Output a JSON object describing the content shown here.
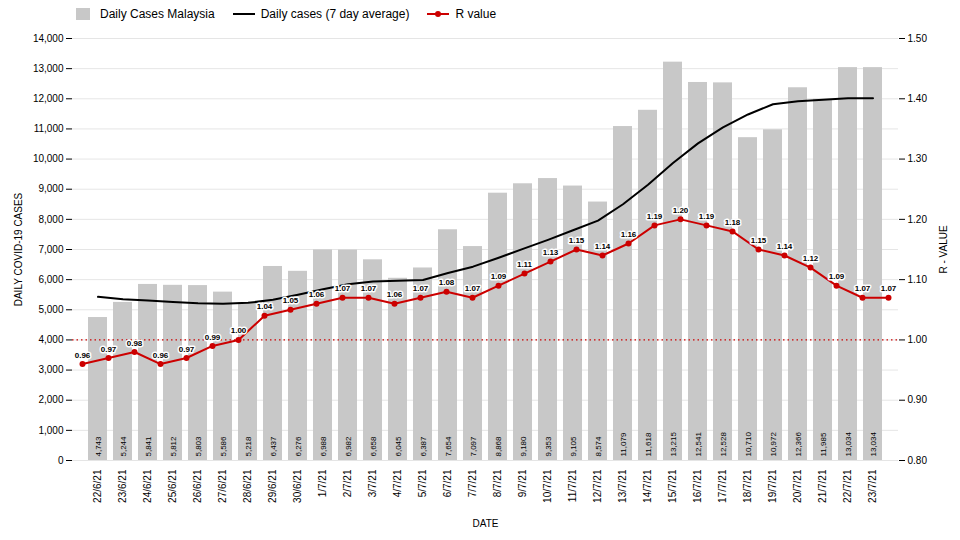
{
  "chart_data": {
    "type": "bar",
    "categories": [
      "22/6/21",
      "23/6/21",
      "24/6/21",
      "25/6/21",
      "26/6/21",
      "27/6/21",
      "28/6/21",
      "29/6/21",
      "30/6/21",
      "1/7/21",
      "2/7/21",
      "3/7/21",
      "4/7/21",
      "5/7/21",
      "6/7/21",
      "7/7/21",
      "8/7/21",
      "9/7/21",
      "10/7/21",
      "11/7/21",
      "12/7/21",
      "13/7/21",
      "14/7/21",
      "15/7/21",
      "16/7/21",
      "17/7/21",
      "18/7/21",
      "19/7/21",
      "20/7/21",
      "21/7/21",
      "22/7/21",
      "23/7/21"
    ],
    "xlabel": "DATE",
    "ylabel": "DAILY COVID-19 CASES",
    "y2label": "R - VALUE",
    "ylim": [
      0,
      14000
    ],
    "yticks": [
      0,
      {
        "value": 1000,
        "label": "1,000"
      },
      {
        "value": 2000,
        "label": "2,000"
      },
      {
        "value": 3000,
        "label": "3,000"
      },
      {
        "value": 4000,
        "label": "4,000"
      },
      {
        "value": 5000,
        "label": "5,000"
      },
      {
        "value": 6000,
        "label": "6,000"
      },
      {
        "value": 7000,
        "label": "7,000"
      },
      {
        "value": 8000,
        "label": "8,000"
      },
      {
        "value": 9000,
        "label": "9,000"
      },
      {
        "value": 10000,
        "label": "10,000"
      },
      {
        "value": 11000,
        "label": "11,000"
      },
      {
        "value": 12000,
        "label": "12,000"
      },
      {
        "value": 13000,
        "label": "13,000"
      },
      {
        "value": 14000,
        "label": "14,000"
      }
    ],
    "y2lim": [
      0.8,
      1.5
    ],
    "y2ticks": [
      {
        "value": 0.8,
        "label": "0.80"
      },
      {
        "value": 0.9,
        "label": "0.90"
      },
      {
        "value": 1.0,
        "label": "1.00"
      },
      {
        "value": 1.1,
        "label": "1.10"
      },
      {
        "value": 1.2,
        "label": "1.20"
      },
      {
        "value": 1.3,
        "label": "1.30"
      },
      {
        "value": 1.4,
        "label": "1.40"
      },
      {
        "value": 1.5,
        "label": "1.50"
      }
    ],
    "grid": true,
    "legend": "upper left",
    "data_labels": true,
    "series": [
      {
        "name": "Daily Cases Malaysia",
        "type": "bar",
        "color": "#c8c8c8",
        "values": [
          4743,
          5244,
          5841,
          5812,
          5803,
          5586,
          5218,
          6437,
          6276,
          6988,
          6982,
          6658,
          6045,
          6387,
          7654,
          7097,
          8868,
          9180,
          9353,
          9105,
          8574,
          11079,
          11618,
          13215,
          12541,
          12528,
          10710,
          10972,
          12366,
          11985,
          13034,
          13034
        ],
        "value_labels": [
          "4,743",
          "5,244",
          "5,841",
          "5,812",
          "5,803",
          "5,586",
          "5,218",
          "6,437",
          "6,276",
          "6,988",
          "6,982",
          "6,658",
          "6,045",
          "6,387",
          "7,654",
          "7,097",
          "8,868",
          "9,180",
          "9,353",
          "9,105",
          "8,574",
          "11,079",
          "11,618",
          "13,215",
          "12,541",
          "12,528",
          "10,710",
          "10,972",
          "12,366",
          "11,985",
          "13,034",
          "13,034"
        ]
      },
      {
        "name": "Daily cases (7 day average)",
        "type": "line",
        "color": "#000000",
        "values": [
          5430,
          5350,
          5310,
          5260,
          5220,
          5200,
          5230,
          5330,
          5500,
          5680,
          5850,
          5940,
          5960,
          5990,
          6220,
          6430,
          6720,
          7020,
          7320,
          7640,
          7960,
          8500,
          9150,
          9870,
          10520,
          11050,
          11480,
          11820,
          11920,
          11970,
          12020,
          12020
        ]
      },
      {
        "name": "R value",
        "type": "line",
        "axis": "y2",
        "color": "#cc0000",
        "marker": "circle",
        "values": [
          0.96,
          0.97,
          0.98,
          0.96,
          0.97,
          0.99,
          1.0,
          1.04,
          1.05,
          1.06,
          1.07,
          1.07,
          1.06,
          1.07,
          1.08,
          1.07,
          1.09,
          1.11,
          1.13,
          1.15,
          1.14,
          1.16,
          1.19,
          1.2,
          1.19,
          1.18,
          1.15,
          1.14,
          1.12,
          1.09,
          1.07,
          1.07
        ],
        "value_labels": [
          "0.96",
          "0.97",
          "0.98",
          "0.96",
          "0.97",
          "0.99",
          "1.00",
          "1.04",
          "1.05",
          "1.06",
          "1.07",
          "1.07",
          "1.06",
          "1.07",
          "1.08",
          "1.07",
          "1.09",
          "1.11",
          "1.13",
          "1.15",
          "1.14",
          "1.16",
          "1.19",
          "1.20",
          "1.19",
          "1.18",
          "1.15",
          "1.14",
          "1.12",
          "1.09",
          "1.07",
          "1.07"
        ]
      }
    ],
    "reference_lines": [
      {
        "value": 1.0,
        "axis": "y2",
        "color": "#cc0000",
        "line_style": "dotted"
      }
    ]
  }
}
